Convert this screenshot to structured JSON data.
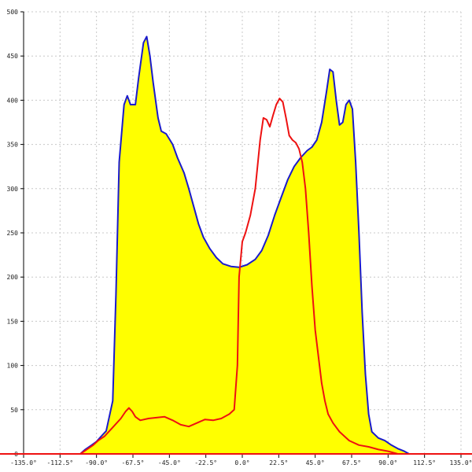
{
  "chart_data": {
    "type": "area",
    "xlim": [
      -135,
      135
    ],
    "ylim": [
      0,
      500
    ],
    "grid": true,
    "x_ticks": [
      -135,
      -112.5,
      -90,
      -67.5,
      -45,
      -22.5,
      0,
      22.5,
      45,
      67.5,
      90,
      112.5,
      135
    ],
    "x_tick_labels": [
      "-135.0°",
      "-112.5°",
      "-90.0°",
      "-67.5°",
      "-45.0°",
      "-22.5°",
      "0.0°",
      "22.5°",
      "45.0°",
      "67.5°",
      "90.0°",
      "112.5°",
      "135.0°"
    ],
    "y_ticks": [
      0,
      50,
      100,
      150,
      200,
      250,
      300,
      350,
      400,
      450,
      500
    ],
    "y_tick_labels": [
      "0",
      "50",
      "100",
      "150",
      "200",
      "250",
      "300",
      "350",
      "400",
      "450",
      "500"
    ],
    "series": [
      {
        "color": "#1a1acc",
        "fill": "#ffff00",
        "points": [
          [
            -135,
            0
          ],
          [
            -100,
            0
          ],
          [
            -97,
            5
          ],
          [
            -93,
            10
          ],
          [
            -90,
            14
          ],
          [
            -87,
            20
          ],
          [
            -84,
            26
          ],
          [
            -80,
            60
          ],
          [
            -78,
            180
          ],
          [
            -76,
            330
          ],
          [
            -73,
            395
          ],
          [
            -71,
            405
          ],
          [
            -69,
            395
          ],
          [
            -66,
            395
          ],
          [
            -64,
            425
          ],
          [
            -61,
            465
          ],
          [
            -59,
            472
          ],
          [
            -57,
            450
          ],
          [
            -55,
            420
          ],
          [
            -52,
            380
          ],
          [
            -50,
            365
          ],
          [
            -47,
            362
          ],
          [
            -43,
            350
          ],
          [
            -40,
            335
          ],
          [
            -36,
            318
          ],
          [
            -33,
            300
          ],
          [
            -30,
            280
          ],
          [
            -27,
            260
          ],
          [
            -24,
            245
          ],
          [
            -20,
            232
          ],
          [
            -16,
            222
          ],
          [
            -12,
            215
          ],
          [
            -7,
            212
          ],
          [
            -2,
            211
          ],
          [
            3,
            214
          ],
          [
            8,
            220
          ],
          [
            12,
            230
          ],
          [
            16,
            247
          ],
          [
            20,
            270
          ],
          [
            24,
            290
          ],
          [
            28,
            310
          ],
          [
            32,
            325
          ],
          [
            36,
            335
          ],
          [
            40,
            343
          ],
          [
            43,
            347
          ],
          [
            46,
            355
          ],
          [
            49,
            375
          ],
          [
            52,
            410
          ],
          [
            54,
            435
          ],
          [
            56,
            432
          ],
          [
            58,
            400
          ],
          [
            60,
            372
          ],
          [
            62,
            375
          ],
          [
            64,
            395
          ],
          [
            66,
            400
          ],
          [
            68,
            390
          ],
          [
            70,
            330
          ],
          [
            72,
            250
          ],
          [
            74,
            160
          ],
          [
            76,
            90
          ],
          [
            78,
            45
          ],
          [
            80,
            25
          ],
          [
            84,
            18
          ],
          [
            88,
            15
          ],
          [
            92,
            10
          ],
          [
            96,
            6
          ],
          [
            100,
            3
          ],
          [
            103,
            0
          ],
          [
            135,
            0
          ]
        ]
      },
      {
        "color": "#ee1111",
        "fill": "none",
        "points": [
          [
            -135,
            0
          ],
          [
            -100,
            0
          ],
          [
            -96,
            5
          ],
          [
            -92,
            10
          ],
          [
            -89,
            15
          ],
          [
            -85,
            20
          ],
          [
            -80,
            30
          ],
          [
            -75,
            40
          ],
          [
            -72,
            48
          ],
          [
            -70,
            52
          ],
          [
            -68,
            48
          ],
          [
            -66,
            42
          ],
          [
            -63,
            38
          ],
          [
            -58,
            40
          ],
          [
            -53,
            41
          ],
          [
            -48,
            42
          ],
          [
            -43,
            38
          ],
          [
            -38,
            33
          ],
          [
            -33,
            31
          ],
          [
            -28,
            35
          ],
          [
            -23,
            39
          ],
          [
            -18,
            38
          ],
          [
            -13,
            40
          ],
          [
            -8,
            45
          ],
          [
            -5,
            50
          ],
          [
            -3,
            100
          ],
          [
            -2,
            200
          ],
          [
            0,
            240
          ],
          [
            2,
            250
          ],
          [
            5,
            270
          ],
          [
            8,
            300
          ],
          [
            11,
            355
          ],
          [
            13,
            380
          ],
          [
            15,
            378
          ],
          [
            17,
            370
          ],
          [
            19,
            383
          ],
          [
            21,
            395
          ],
          [
            23,
            402
          ],
          [
            25,
            398
          ],
          [
            27,
            380
          ],
          [
            29,
            360
          ],
          [
            31,
            355
          ],
          [
            33,
            352
          ],
          [
            35,
            345
          ],
          [
            37,
            330
          ],
          [
            39,
            300
          ],
          [
            41,
            250
          ],
          [
            43,
            190
          ],
          [
            45,
            140
          ],
          [
            47,
            110
          ],
          [
            49,
            80
          ],
          [
            51,
            60
          ],
          [
            53,
            45
          ],
          [
            56,
            35
          ],
          [
            60,
            25
          ],
          [
            66,
            15
          ],
          [
            72,
            10
          ],
          [
            78,
            8
          ],
          [
            84,
            5
          ],
          [
            90,
            3
          ],
          [
            96,
            0
          ],
          [
            135,
            0
          ]
        ]
      }
    ]
  }
}
